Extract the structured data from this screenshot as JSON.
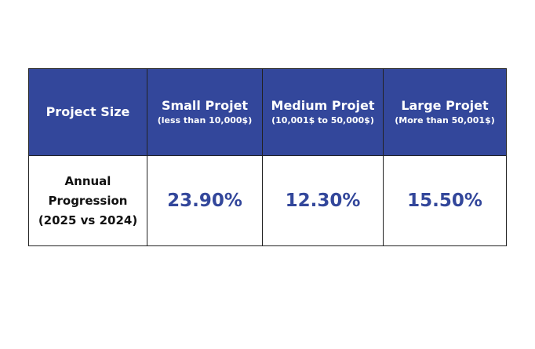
{
  "table": {
    "header": {
      "first": "Project Size",
      "columns": [
        {
          "title": "Small Projet",
          "subtitle": "(less than 10,000$)"
        },
        {
          "title": "Medium Projet",
          "subtitle": "(10,001$ to 50,000$)"
        },
        {
          "title": "Large Projet",
          "subtitle": "(More than 50,001$)"
        }
      ]
    },
    "row": {
      "label_lines": [
        "Annual",
        "Progression",
        "(2025 vs 2024)"
      ],
      "values": [
        "23.90%",
        "12.30%",
        "15.50%"
      ]
    }
  },
  "colors": {
    "header_bg": "#33479b",
    "value_text": "#33479b"
  }
}
